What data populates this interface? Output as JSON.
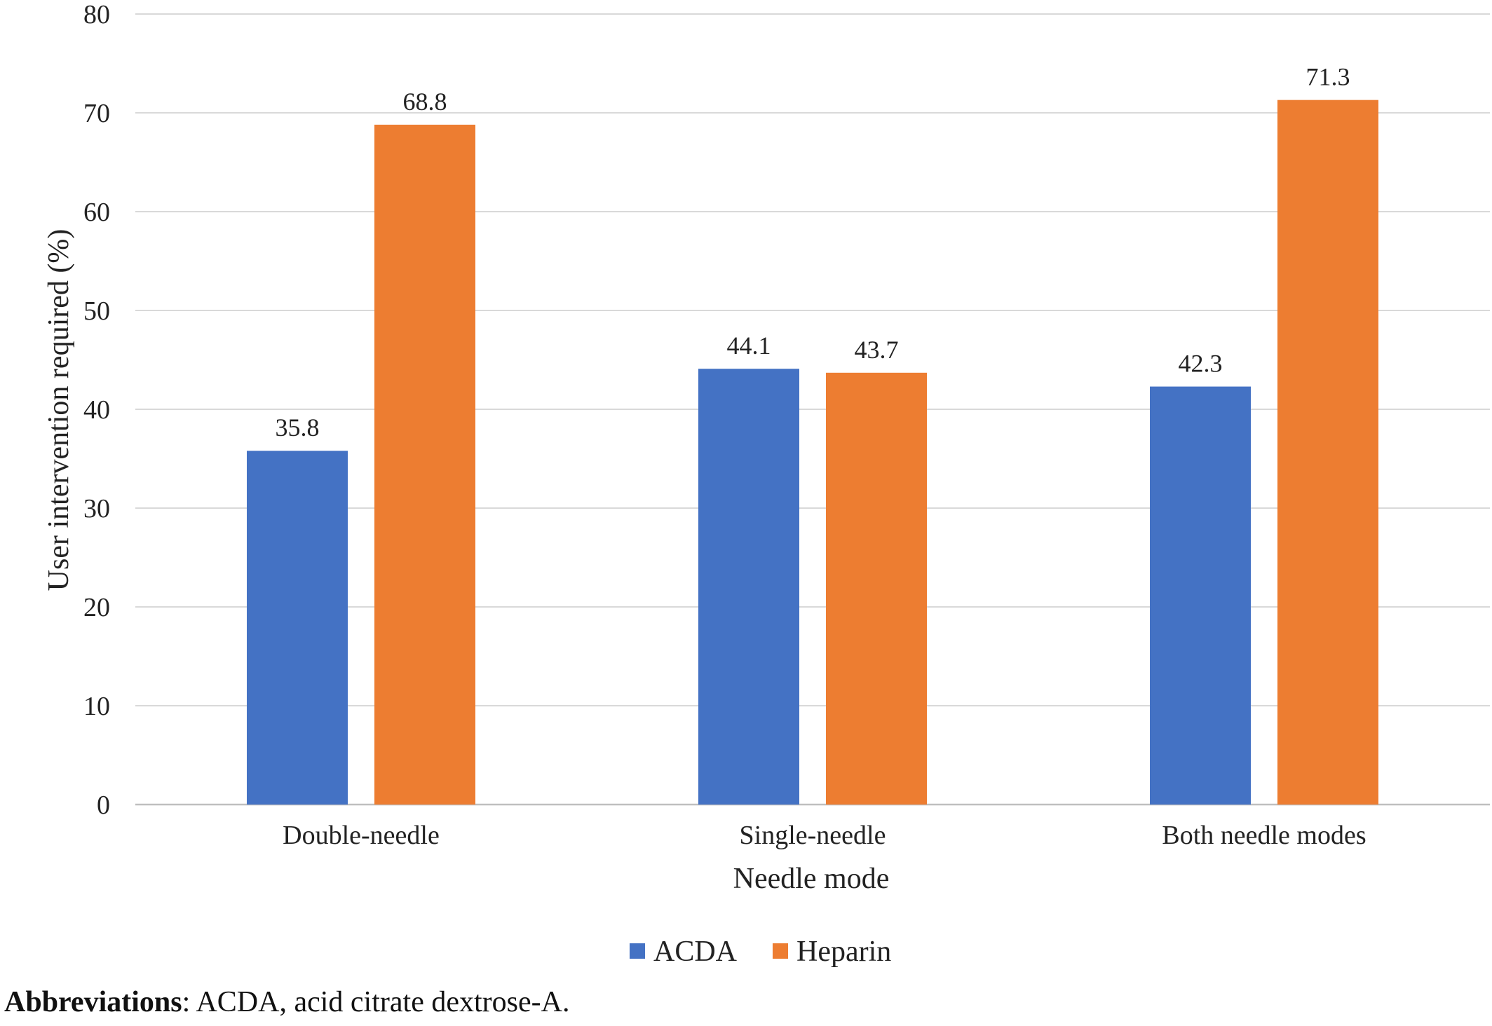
{
  "chart_data": {
    "type": "bar",
    "categories": [
      "Double-needle",
      "Single-needle",
      "Both needle modes"
    ],
    "series": [
      {
        "name": "ACDA",
        "values": [
          35.8,
          44.1,
          42.3
        ],
        "color": "#4472C4"
      },
      {
        "name": "Heparin",
        "values": [
          68.8,
          43.7,
          71.3
        ],
        "color": "#ED7D31"
      }
    ],
    "data_labels": [
      [
        "35.8",
        "44.1",
        "42.3"
      ],
      [
        "68.8",
        "43.7",
        "71.3"
      ]
    ],
    "xlabel": "Needle mode",
    "ylabel": "User intervention  required (%)",
    "ylim": [
      0,
      80
    ],
    "yticks": [
      "0",
      "10",
      "20",
      "30",
      "40",
      "50",
      "60",
      "70",
      "80"
    ],
    "grid": true,
    "legend_position": "bottom"
  },
  "footnote": {
    "label": "Abbreviations",
    "text": ": ACDA, acid citrate dextrose-A."
  }
}
